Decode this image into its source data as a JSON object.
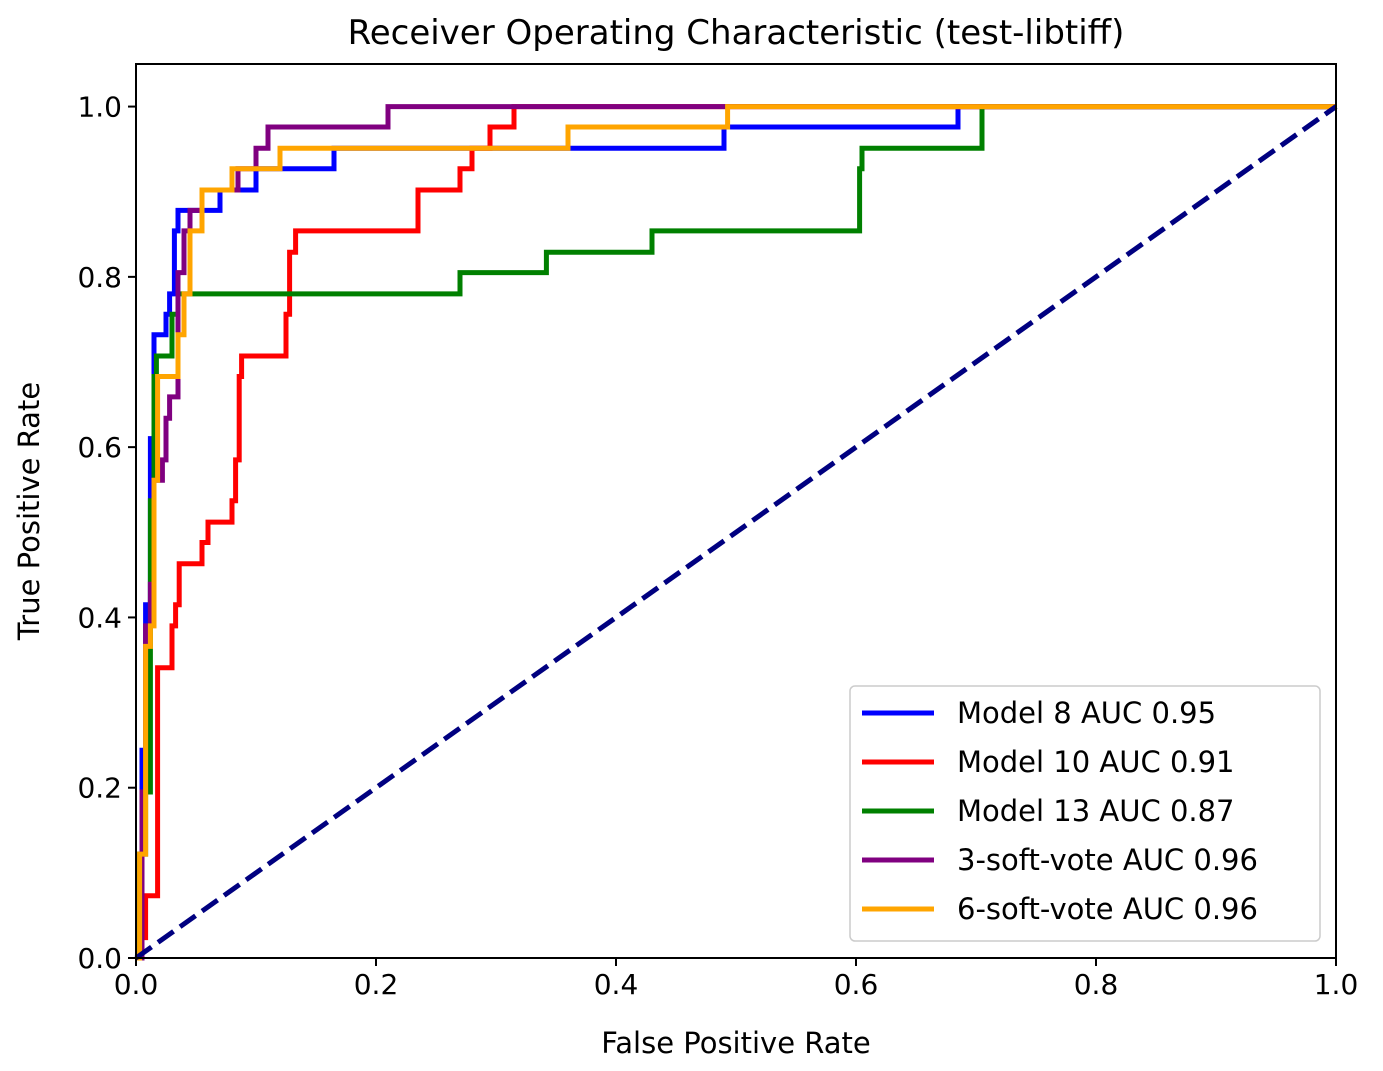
{
  "chart_data": {
    "type": "line",
    "title": "Receiver Operating Characteristic (test-libtiff)",
    "xlabel": "False Positive Rate",
    "ylabel": "True Positive Rate",
    "xlim": [
      0.0,
      1.0
    ],
    "ylim": [
      0.0,
      1.05
    ],
    "xticks": [
      "0.0",
      "0.2",
      "0.4",
      "0.6",
      "0.8",
      "1.0"
    ],
    "yticks": [
      "0.0",
      "0.2",
      "0.4",
      "0.6",
      "0.8",
      "1.0"
    ],
    "grid": false,
    "legend_position": "lower-right",
    "series": [
      {
        "name": "Model 8 AUC 0.95",
        "color": "#0000ff",
        "x": [
          0,
          0.005,
          0.005,
          0.008,
          0.008,
          0.012,
          0.012,
          0.015,
          0.015,
          0.018,
          0.018,
          0.025,
          0.025,
          0.028,
          0.028,
          0.032,
          0.032,
          0.035,
          0.035,
          0.04,
          0.04,
          0.07,
          0.07,
          0.08,
          0.08,
          0.1,
          0.1,
          0.115,
          0.115,
          0.165,
          0.165,
          0.49,
          0.49,
          0.685,
          0.685,
          0.705,
          1.0
        ],
        "y": [
          0,
          0,
          0.244,
          0.244,
          0.415,
          0.415,
          0.61,
          0.61,
          0.732,
          0.732,
          0.732,
          0.732,
          0.756,
          0.756,
          0.78,
          0.78,
          0.854,
          0.854,
          0.878,
          0.878,
          0.878,
          0.878,
          0.902,
          0.902,
          0.902,
          0.902,
          0.927,
          0.927,
          0.927,
          0.927,
          0.951,
          0.951,
          0.976,
          0.976,
          1.0,
          1.0,
          1.0
        ]
      },
      {
        "name": "Model 10 AUC 0.91",
        "color": "#ff0000",
        "x": [
          0,
          0.005,
          0.005,
          0.008,
          0.008,
          0.018,
          0.018,
          0.02,
          0.02,
          0.03,
          0.03,
          0.033,
          0.033,
          0.036,
          0.036,
          0.055,
          0.055,
          0.06,
          0.06,
          0.08,
          0.08,
          0.083,
          0.083,
          0.086,
          0.086,
          0.088,
          0.088,
          0.09,
          0.09,
          0.125,
          0.125,
          0.128,
          0.128,
          0.133,
          0.133,
          0.145,
          0.145,
          0.235,
          0.235,
          0.27,
          0.27,
          0.28,
          0.28,
          0.295,
          0.295,
          0.315,
          0.315,
          1.0
        ],
        "y": [
          0,
          0,
          0.024,
          0.024,
          0.073,
          0.073,
          0.341,
          0.341,
          0.341,
          0.341,
          0.39,
          0.39,
          0.415,
          0.415,
          0.463,
          0.463,
          0.488,
          0.488,
          0.512,
          0.512,
          0.537,
          0.537,
          0.585,
          0.585,
          0.683,
          0.683,
          0.707,
          0.707,
          0.707,
          0.707,
          0.756,
          0.756,
          0.829,
          0.829,
          0.854,
          0.854,
          0.854,
          0.854,
          0.902,
          0.902,
          0.927,
          0.927,
          0.951,
          0.951,
          0.976,
          0.976,
          1.0,
          1.0
        ]
      },
      {
        "name": "Model 13 AUC 0.87",
        "color": "#008000",
        "x": [
          0,
          0.003,
          0.003,
          0.008,
          0.008,
          0.012,
          0.012,
          0.015,
          0.015,
          0.017,
          0.017,
          0.03,
          0.03,
          0.035,
          0.035,
          0.045,
          0.045,
          0.27,
          0.27,
          0.342,
          0.342,
          0.43,
          0.43,
          0.603,
          0.603,
          0.605,
          0.605,
          0.705,
          0.705,
          1.0
        ],
        "y": [
          0,
          0,
          0.122,
          0.122,
          0.195,
          0.195,
          0.537,
          0.537,
          0.683,
          0.683,
          0.707,
          0.707,
          0.756,
          0.756,
          0.78,
          0.78,
          0.78,
          0.78,
          0.805,
          0.805,
          0.829,
          0.829,
          0.854,
          0.854,
          0.927,
          0.927,
          0.951,
          0.951,
          1.0,
          1.0
        ]
      },
      {
        "name": "3-soft-vote AUC 0.96",
        "color": "#800080",
        "x": [
          0,
          0.005,
          0.005,
          0.008,
          0.008,
          0.012,
          0.012,
          0.015,
          0.015,
          0.022,
          0.022,
          0.025,
          0.025,
          0.028,
          0.028,
          0.035,
          0.035,
          0.04,
          0.04,
          0.045,
          0.045,
          0.055,
          0.055,
          0.065,
          0.065,
          0.085,
          0.085,
          0.1,
          0.1,
          0.11,
          0.11,
          0.21,
          0.21,
          0.245,
          0.245,
          1.0
        ],
        "y": [
          0,
          0,
          0.195,
          0.195,
          0.39,
          0.39,
          0.439,
          0.439,
          0.561,
          0.561,
          0.585,
          0.585,
          0.634,
          0.634,
          0.659,
          0.659,
          0.805,
          0.805,
          0.854,
          0.854,
          0.878,
          0.878,
          0.902,
          0.902,
          0.902,
          0.902,
          0.927,
          0.927,
          0.951,
          0.951,
          0.976,
          0.976,
          1.0,
          1.0,
          1.0,
          1.0
        ]
      },
      {
        "name": "6-soft-vote AUC 0.96",
        "color": "#ffa500",
        "x": [
          0,
          0.003,
          0.003,
          0.008,
          0.008,
          0.012,
          0.012,
          0.015,
          0.015,
          0.018,
          0.018,
          0.022,
          0.022,
          0.035,
          0.035,
          0.04,
          0.04,
          0.045,
          0.045,
          0.055,
          0.055,
          0.065,
          0.065,
          0.08,
          0.08,
          0.12,
          0.12,
          0.36,
          0.36,
          0.493,
          0.493,
          1.0
        ],
        "y": [
          0,
          0,
          0.122,
          0.122,
          0.366,
          0.366,
          0.39,
          0.39,
          0.561,
          0.561,
          0.683,
          0.683,
          0.683,
          0.683,
          0.732,
          0.732,
          0.78,
          0.78,
          0.854,
          0.854,
          0.902,
          0.902,
          0.902,
          0.902,
          0.927,
          0.927,
          0.951,
          0.951,
          0.976,
          0.976,
          1.0,
          1.0
        ]
      }
    ],
    "reference_line": {
      "color": "#000080",
      "style": "dashed",
      "x": [
        0,
        1
      ],
      "y": [
        0,
        1
      ]
    }
  }
}
